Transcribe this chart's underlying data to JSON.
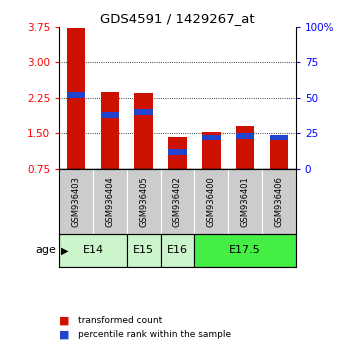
{
  "title": "GDS4591 / 1429267_at",
  "samples": [
    "GSM936403",
    "GSM936404",
    "GSM936405",
    "GSM936402",
    "GSM936400",
    "GSM936401",
    "GSM936406"
  ],
  "transformed_counts": [
    3.72,
    2.38,
    2.36,
    1.42,
    1.53,
    1.65,
    1.43
  ],
  "percentile_ranks": [
    52,
    38,
    40,
    12,
    22,
    23,
    22
  ],
  "ylim_left": [
    0.75,
    3.75
  ],
  "yticks_left": [
    0.75,
    1.5,
    2.25,
    3.0,
    3.75
  ],
  "ylim_right": [
    0,
    100
  ],
  "yticks_right": [
    0,
    25,
    50,
    75,
    100
  ],
  "age_group_data": [
    {
      "label": "E14",
      "indices": [
        0,
        1
      ],
      "color": "#ccf5cc"
    },
    {
      "label": "E15",
      "indices": [
        2
      ],
      "color": "#ccf5cc"
    },
    {
      "label": "E16",
      "indices": [
        3
      ],
      "color": "#ccf5cc"
    },
    {
      "label": "E17.5",
      "indices": [
        4,
        5,
        6
      ],
      "color": "#44ee44"
    }
  ],
  "bar_color_red": "#cc1100",
  "bar_color_blue": "#2244cc",
  "bar_width": 0.55,
  "bg_color": "#ffffff",
  "sample_box_color": "#cccccc",
  "legend_red_label": "transformed count",
  "legend_blue_label": "percentile rank within the sample"
}
